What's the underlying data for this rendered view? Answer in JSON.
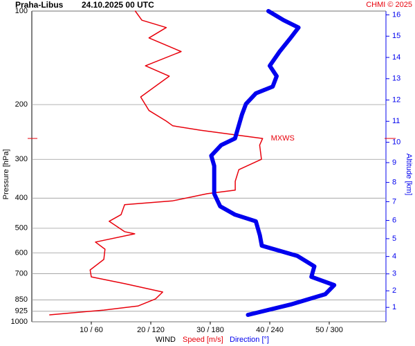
{
  "chart_data": {
    "type": "line",
    "title": "Praha-Libus",
    "subtitle": "24.10.2025 00 UTC",
    "credit": "CHMI © 2025",
    "ylabel": "Pressure [hPa]",
    "y2label": "Altitude [km]",
    "xlabel": "WIND",
    "x_series_labels": [
      "Speed [m/s]",
      "Direction [°]"
    ],
    "annotation": "MXWS",
    "ylim": [
      100,
      1000
    ],
    "ylog": true,
    "yticks": [
      100,
      200,
      300,
      400,
      500,
      600,
      700,
      850,
      925,
      1000
    ],
    "y2ticks": [
      1,
      2,
      3,
      4,
      5,
      6,
      7,
      8,
      9,
      10,
      11,
      12,
      13,
      14,
      15,
      16
    ],
    "xlim": [
      0,
      60
    ],
    "x2lim": [
      0,
      360
    ],
    "xticks": [
      {
        "value": 10,
        "label": "10 / 60"
      },
      {
        "value": 20,
        "label": "20 / 120"
      },
      {
        "value": 30,
        "label": "30 / 180"
      },
      {
        "value": 40,
        "label": "40 / 240"
      },
      {
        "value": 50,
        "label": "50 / 300"
      }
    ],
    "grid": true,
    "series": [
      {
        "name": "Speed [m/s]",
        "color": "#e8000b",
        "axis": "x",
        "pressure": [
          100,
          107,
          113,
          122,
          135,
          150,
          162,
          189,
          209,
          226,
          234,
          242,
          257,
          270,
          300,
          324,
          353,
          377,
          387,
          408,
          420,
          452,
          475,
          513,
          521,
          554,
          584,
          630,
          681,
          717,
          754,
          802,
          844,
          889,
          917,
          950
        ],
        "values": [
          17.4,
          18.5,
          22.6,
          19.7,
          25.1,
          19.1,
          23.1,
          18.3,
          19.7,
          22.6,
          23.7,
          28.4,
          38.8,
          38.3,
          38.6,
          34.8,
          34.2,
          34.2,
          29.5,
          23.7,
          15.6,
          15.0,
          13.0,
          15.6,
          17.3,
          10.7,
          12.3,
          12.1,
          9.8,
          10.0,
          15.6,
          22.0,
          20.8,
          17.9,
          12.1,
          3.0
        ]
      },
      {
        "name": "Direction [°]",
        "color": "#0000ee",
        "axis": "x2",
        "pressure": [
          100,
          107,
          113,
          122,
          135,
          150,
          162,
          175,
          184,
          199,
          215,
          232,
          257,
          270,
          292,
          315,
          349,
          387,
          425,
          452,
          475,
          527,
          569,
          614,
          663,
          717,
          762,
          815,
          880,
          950
        ],
        "values": [
          238.6,
          254,
          269,
          261,
          250,
          240,
          247,
          243,
          226,
          216,
          212,
          209,
          205,
          191,
          181,
          184,
          184,
          184,
          190,
          205,
          226,
          230,
          232,
          268,
          285,
          282,
          305,
          296,
          261,
          218
        ]
      }
    ]
  }
}
